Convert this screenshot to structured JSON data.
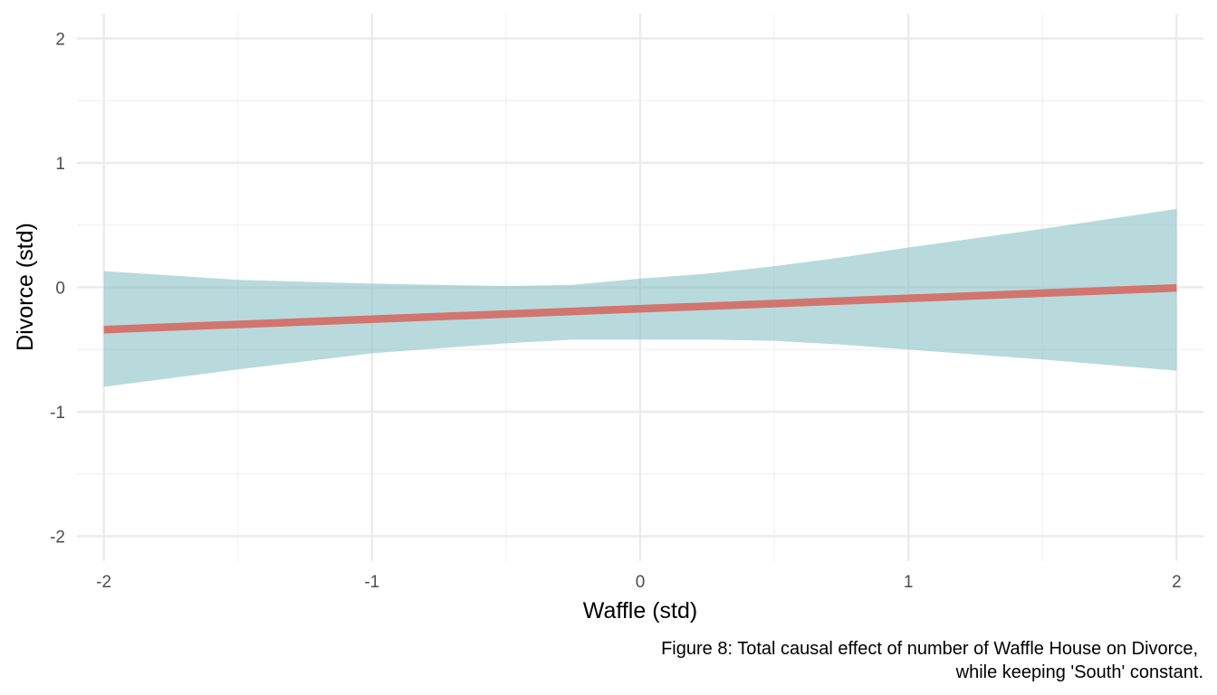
{
  "chart_data": {
    "type": "line",
    "xlabel": "Waffle (std)",
    "ylabel": "Divorce (std)",
    "caption_lines": [
      "Figure 8: Total causal effect of number of Waffle House on Divorce,",
      "while keeping 'South' constant."
    ],
    "xlim": [
      -2.1,
      2.1
    ],
    "ylim": [
      -2.2,
      2.2
    ],
    "x_ticks": [
      -2,
      -1,
      0,
      1,
      2
    ],
    "y_ticks": [
      -2,
      -1,
      0,
      1,
      2
    ],
    "x_tick_labels": [
      "-2",
      "-1",
      "0",
      "1",
      "2"
    ],
    "y_tick_labels": [
      "-2",
      "-1",
      "0",
      "1",
      "2"
    ],
    "grid": true,
    "legend": "none",
    "series": [
      {
        "kind": "line",
        "x": [
          -2,
          2
        ],
        "y": [
          -0.34,
          -0.005
        ],
        "color": "#d2756f"
      },
      {
        "kind": "ribbon",
        "x": [
          -2,
          -1.5,
          -1,
          -0.5,
          -0.25,
          0,
          0.25,
          0.5,
          0.75,
          1,
          1.5,
          2
        ],
        "lower": [
          -0.8,
          -0.66,
          -0.53,
          -0.45,
          -0.42,
          -0.42,
          -0.42,
          -0.43,
          -0.46,
          -0.5,
          -0.58,
          -0.67
        ],
        "upper": [
          0.13,
          0.06,
          0.03,
          0.01,
          0.02,
          0.07,
          0.11,
          0.17,
          0.24,
          0.32,
          0.47,
          0.63
        ],
        "color": "#8cc4c8"
      }
    ]
  }
}
